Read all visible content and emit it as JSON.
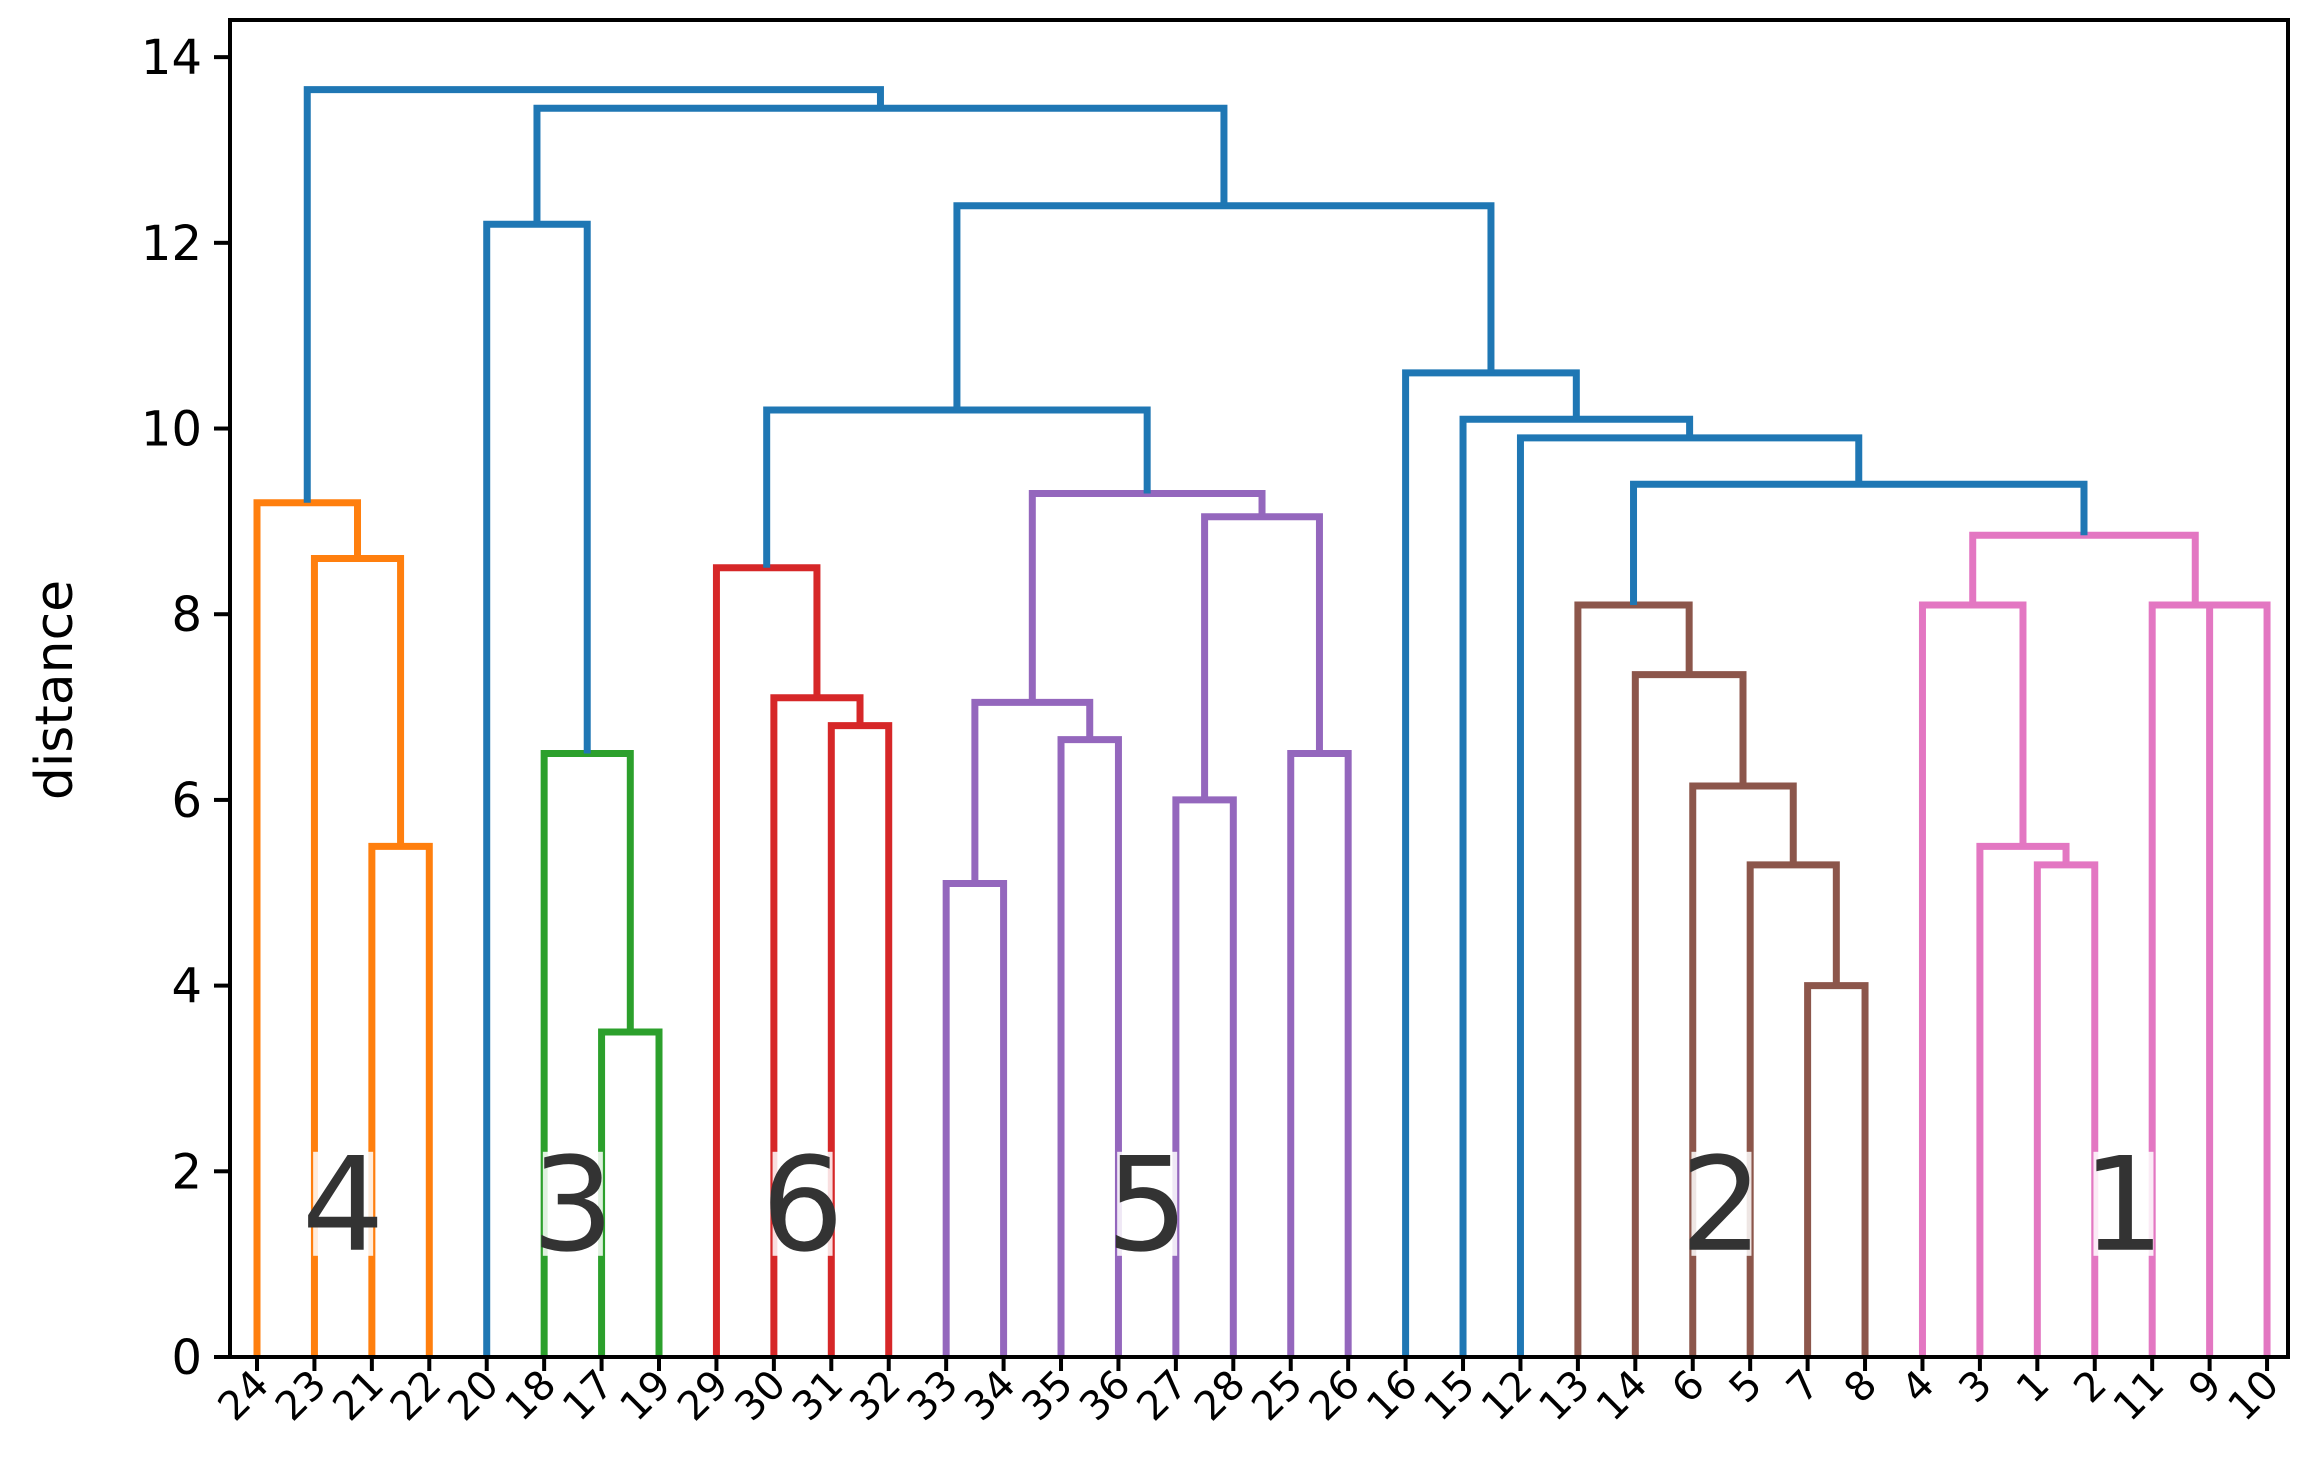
{
  "chart_data": {
    "type": "dendrogram",
    "title": "",
    "xlabel": "",
    "ylabel": "distance",
    "ylim": [
      0,
      14.4
    ],
    "yticks": [
      0,
      2,
      4,
      6,
      8,
      10,
      12,
      14
    ],
    "colors": {
      "link": "#1f77b4",
      "c4": "#ff7f0e",
      "c3": "#2ca02c",
      "c6": "#d62728",
      "c5": "#9467bd",
      "c2": "#8c564b",
      "c1": "#e377c2",
      "axis": "#000000",
      "cluster_text": "#333333"
    },
    "leaves": [
      "24",
      "23",
      "21",
      "22",
      "20",
      "18",
      "17",
      "19",
      "29",
      "30",
      "31",
      "32",
      "33",
      "34",
      "35",
      "36",
      "27",
      "28",
      "25",
      "26",
      "16",
      "15",
      "12",
      "13",
      "14",
      "6",
      "5",
      "7",
      "8",
      "4",
      "3",
      "1",
      "2",
      "11",
      "9",
      "10"
    ],
    "merges": [
      {
        "id": "a1",
        "left": "L2",
        "right": "L3",
        "height": 5.5,
        "color": "c4"
      },
      {
        "id": "a2",
        "left": "L1",
        "right": "a1",
        "height": 8.6,
        "color": "c4"
      },
      {
        "id": "a3",
        "left": "L0",
        "right": "a2",
        "height": 9.2,
        "color": "c4"
      },
      {
        "id": "b1",
        "left": "L6",
        "right": "L7",
        "height": 3.5,
        "color": "c3"
      },
      {
        "id": "b2",
        "left": "L5",
        "right": "b1",
        "height": 6.5,
        "color": "c3"
      },
      {
        "id": "b3",
        "left": "L4",
        "right": "b2",
        "height": 12.2,
        "color": "link"
      },
      {
        "id": "c1",
        "left": "L10",
        "right": "L11",
        "height": 6.8,
        "color": "c6"
      },
      {
        "id": "c2",
        "left": "L9",
        "right": "c1",
        "height": 7.1,
        "color": "c6"
      },
      {
        "id": "c3",
        "left": "L8",
        "right": "c2",
        "height": 8.5,
        "color": "c6"
      },
      {
        "id": "d1",
        "left": "L12",
        "right": "L13",
        "height": 5.1,
        "color": "c5"
      },
      {
        "id": "d2",
        "left": "L14",
        "right": "L15",
        "height": 6.65,
        "color": "c5"
      },
      {
        "id": "d3",
        "left": "d1",
        "right": "d2",
        "height": 7.05,
        "color": "c5"
      },
      {
        "id": "d4",
        "left": "L16",
        "right": "L17",
        "height": 6.0,
        "color": "c5"
      },
      {
        "id": "d5",
        "left": "L18",
        "right": "L19",
        "height": 6.5,
        "color": "c5"
      },
      {
        "id": "d6",
        "left": "d4",
        "right": "d5",
        "height": 9.05,
        "color": "c5"
      },
      {
        "id": "d7",
        "left": "d3",
        "right": "d6",
        "height": 9.3,
        "color": "c5"
      },
      {
        "id": "e1",
        "left": "c3",
        "right": "d7",
        "height": 10.2,
        "color": "link"
      },
      {
        "id": "f1",
        "left": "L27",
        "right": "L28",
        "height": 4.0,
        "color": "c2"
      },
      {
        "id": "f2",
        "left": "L26",
        "right": "f1",
        "height": 5.3,
        "color": "c2"
      },
      {
        "id": "f3",
        "left": "L25",
        "right": "f2",
        "height": 6.15,
        "color": "c2"
      },
      {
        "id": "f4",
        "left": "L24",
        "right": "f3",
        "height": 7.35,
        "color": "c2"
      },
      {
        "id": "f5",
        "left": "L23",
        "right": "f4",
        "height": 8.1,
        "color": "c2"
      },
      {
        "id": "g1",
        "left": "L31",
        "right": "L32",
        "height": 5.3,
        "color": "c1"
      },
      {
        "id": "g2",
        "left": "L30",
        "right": "g1",
        "height": 5.5,
        "color": "c1"
      },
      {
        "id": "g3",
        "left": "L29",
        "right": "g2",
        "height": 8.1,
        "color": "c1"
      },
      {
        "id": "g4",
        "left": "L34",
        "right": "L35",
        "height": 8.1,
        "color": "c1"
      },
      {
        "id": "g5",
        "left": "L33",
        "right": "g4",
        "height": 8.1,
        "color": "c1"
      },
      {
        "id": "g6",
        "left": "g3",
        "right": "g5",
        "height": 8.85,
        "color": "c1"
      },
      {
        "id": "h1",
        "left": "f5",
        "right": "g6",
        "height": 9.4,
        "color": "link"
      },
      {
        "id": "h2",
        "left": "L22",
        "right": "h1",
        "height": 9.9,
        "color": "link"
      },
      {
        "id": "h3",
        "left": "L21",
        "right": "h2",
        "height": 10.1,
        "color": "link"
      },
      {
        "id": "h4",
        "left": "L20",
        "right": "h3",
        "height": 10.6,
        "color": "link"
      },
      {
        "id": "i1",
        "left": "e1",
        "right": "h4",
        "height": 12.4,
        "color": "link"
      },
      {
        "id": "j1",
        "left": "b3",
        "right": "i1",
        "height": 13.45,
        "color": "link"
      },
      {
        "id": "k1",
        "left": "a3",
        "right": "j1",
        "height": 13.65,
        "color": "link"
      }
    ],
    "cluster_labels": [
      {
        "text": "4",
        "leaf_center": 1.5
      },
      {
        "text": "3",
        "leaf_center": 5.5
      },
      {
        "text": "6",
        "leaf_center": 9.5
      },
      {
        "text": "5",
        "leaf_center": 15.5
      },
      {
        "text": "2",
        "leaf_center": 25.5
      },
      {
        "text": "1",
        "leaf_center": 32.5
      }
    ],
    "cluster_label_y": 1.65
  }
}
